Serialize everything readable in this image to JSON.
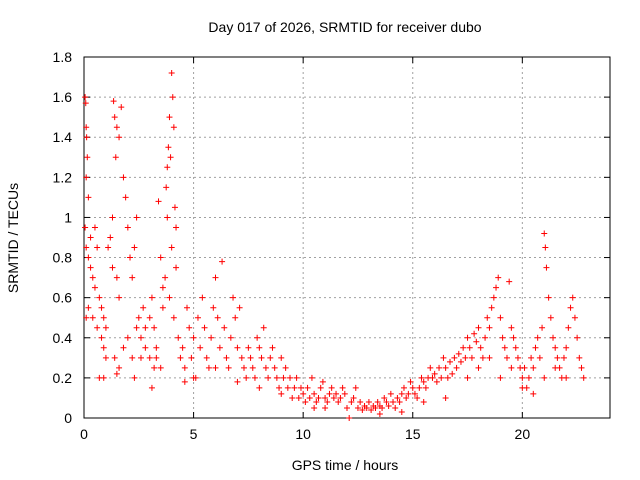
{
  "chart_data": {
    "type": "scatter",
    "title": "Day 017 of 2026, SRMTID for receiver dubo",
    "xlabel": "GPS time / hours",
    "ylabel": "SRMTID / TECUs",
    "xlim": [
      0,
      24
    ],
    "ylim": [
      0,
      1.8
    ],
    "xticks": [
      0,
      5,
      10,
      15,
      20
    ],
    "yticks": [
      0,
      0.2,
      0.4,
      0.6,
      0.8,
      1,
      1.2,
      1.4,
      1.6,
      1.8
    ],
    "ytick_labels": [
      "0",
      "0.2",
      "0.4",
      "0.6",
      "0.8",
      "1",
      "1.2",
      "1.4",
      "1.6",
      "1.8"
    ],
    "grid": true,
    "marker": "+",
    "series_color": "#ff0000",
    "series": [
      {
        "name": "SRMTID",
        "points": [
          [
            0.05,
            1.6
          ],
          [
            0.08,
            1.57
          ],
          [
            0.1,
            1.45
          ],
          [
            0.12,
            1.4
          ],
          [
            0.15,
            1.3
          ],
          [
            0.1,
            1.2
          ],
          [
            0.2,
            1.1
          ],
          [
            0.05,
            0.95
          ],
          [
            0.1,
            0.85
          ],
          [
            0.2,
            0.8
          ],
          [
            0.3,
            0.75
          ],
          [
            0.4,
            0.7
          ],
          [
            0.5,
            0.65
          ],
          [
            0.3,
            0.9
          ],
          [
            0.5,
            0.95
          ],
          [
            0.6,
            0.85
          ],
          [
            0.7,
            0.6
          ],
          [
            0.8,
            0.55
          ],
          [
            0.9,
            0.5
          ],
          [
            1.0,
            0.45
          ],
          [
            0.2,
            0.55
          ],
          [
            0.4,
            0.5
          ],
          [
            0.6,
            0.45
          ],
          [
            0.8,
            0.4
          ],
          [
            0.1,
            0.5
          ],
          [
            0.9,
            0.35
          ],
          [
            1.0,
            0.3
          ],
          [
            1.1,
            0.85
          ],
          [
            1.2,
            0.9
          ],
          [
            1.3,
            0.75
          ],
          [
            1.35,
            1.58
          ],
          [
            1.4,
            1.5
          ],
          [
            1.45,
            1.3
          ],
          [
            1.5,
            1.45
          ],
          [
            1.6,
            1.4
          ],
          [
            1.7,
            1.55
          ],
          [
            1.3,
            1.0
          ],
          [
            1.5,
            0.7
          ],
          [
            1.6,
            0.6
          ],
          [
            1.8,
            1.2
          ],
          [
            1.9,
            1.1
          ],
          [
            2.0,
            0.95
          ],
          [
            2.1,
            0.8
          ],
          [
            2.2,
            0.7
          ],
          [
            2.3,
            0.85
          ],
          [
            2.4,
            1.0
          ],
          [
            2.5,
            0.5
          ],
          [
            2.6,
            0.4
          ],
          [
            2.7,
            0.55
          ],
          [
            2.8,
            0.45
          ],
          [
            1.4,
            0.3
          ],
          [
            1.6,
            0.25
          ],
          [
            1.8,
            0.35
          ],
          [
            2.0,
            0.4
          ],
          [
            2.2,
            0.3
          ],
          [
            2.4,
            0.45
          ],
          [
            2.6,
            0.3
          ],
          [
            2.8,
            0.35
          ],
          [
            0.7,
            0.2
          ],
          [
            1.5,
            0.22
          ],
          [
            3.0,
            0.5
          ],
          [
            3.1,
            0.6
          ],
          [
            3.2,
            0.45
          ],
          [
            3.3,
            0.35
          ],
          [
            3.4,
            1.08
          ],
          [
            3.5,
            0.8
          ],
          [
            3.6,
            0.65
          ],
          [
            3.7,
            0.7
          ],
          [
            3.8,
            1.0
          ],
          [
            3.75,
            1.15
          ],
          [
            3.8,
            1.25
          ],
          [
            3.85,
            1.35
          ],
          [
            3.9,
            1.5
          ],
          [
            3.95,
            1.3
          ],
          [
            4.0,
            1.72
          ],
          [
            4.05,
            1.6
          ],
          [
            4.1,
            1.45
          ],
          [
            4.15,
            1.05
          ],
          [
            4.2,
            0.95
          ],
          [
            4.0,
            0.85
          ],
          [
            3.6,
            0.55
          ],
          [
            3.9,
            0.6
          ],
          [
            4.1,
            0.5
          ],
          [
            4.2,
            0.75
          ],
          [
            3.3,
            0.3
          ],
          [
            3.5,
            0.25
          ],
          [
            3.0,
            0.3
          ],
          [
            3.2,
            0.25
          ],
          [
            4.3,
            0.4
          ],
          [
            4.4,
            0.3
          ],
          [
            4.5,
            0.35
          ],
          [
            4.6,
            0.25
          ],
          [
            4.7,
            0.55
          ],
          [
            4.8,
            0.45
          ],
          [
            4.9,
            0.3
          ],
          [
            5.0,
            0.4
          ],
          [
            5.1,
            0.2
          ],
          [
            5.2,
            0.5
          ],
          [
            5.3,
            0.35
          ],
          [
            5.4,
            0.6
          ],
          [
            5.5,
            0.45
          ],
          [
            5.6,
            0.3
          ],
          [
            5.7,
            0.25
          ],
          [
            5.8,
            0.4
          ],
          [
            5.9,
            0.55
          ],
          [
            6.0,
            0.7
          ],
          [
            6.1,
            0.5
          ],
          [
            6.2,
            0.35
          ],
          [
            6.3,
            0.78
          ],
          [
            6.4,
            0.45
          ],
          [
            6.5,
            0.3
          ],
          [
            6.6,
            0.25
          ],
          [
            6.7,
            0.4
          ],
          [
            6.8,
            0.6
          ],
          [
            6.9,
            0.5
          ],
          [
            7.0,
            0.35
          ],
          [
            7.1,
            0.55
          ],
          [
            7.2,
            0.3
          ],
          [
            7.3,
            0.25
          ],
          [
            7.4,
            0.2
          ],
          [
            7.5,
            0.35
          ],
          [
            7.6,
            0.3
          ],
          [
            7.7,
            0.25
          ],
          [
            7.8,
            0.2
          ],
          [
            7.9,
            0.4
          ],
          [
            8.0,
            0.35
          ],
          [
            8.1,
            0.3
          ],
          [
            8.2,
            0.45
          ],
          [
            8.3,
            0.25
          ],
          [
            8.4,
            0.2
          ],
          [
            8.5,
            0.3
          ],
          [
            8.6,
            0.35
          ],
          [
            8.7,
            0.25
          ],
          [
            8.8,
            0.2
          ],
          [
            8.9,
            0.15
          ],
          [
            9.0,
            0.3
          ],
          [
            9.1,
            0.2
          ],
          [
            9.2,
            0.25
          ],
          [
            9.3,
            0.15
          ],
          [
            9.4,
            0.2
          ],
          [
            9.5,
            0.1
          ],
          [
            9.6,
            0.15
          ],
          [
            9.7,
            0.2
          ],
          [
            9.8,
            0.1
          ],
          [
            9.9,
            0.15
          ],
          [
            10.0,
            0.12
          ],
          [
            10.1,
            0.08
          ],
          [
            10.2,
            0.15
          ],
          [
            10.3,
            0.1
          ],
          [
            10.4,
            0.2
          ],
          [
            10.5,
            0.12
          ],
          [
            10.6,
            0.08
          ],
          [
            10.7,
            0.1
          ],
          [
            10.8,
            0.15
          ],
          [
            10.9,
            0.18
          ],
          [
            11.0,
            0.1
          ],
          [
            11.1,
            0.08
          ],
          [
            11.2,
            0.12
          ],
          [
            11.3,
            0.15
          ],
          [
            11.4,
            0.1
          ],
          [
            11.5,
            0.12
          ],
          [
            11.6,
            0.08
          ],
          [
            11.7,
            0.1
          ],
          [
            11.8,
            0.15
          ],
          [
            11.9,
            0.12
          ],
          [
            12.0,
            0.05
          ],
          [
            12.1,
            0.0
          ],
          [
            12.2,
            0.08
          ],
          [
            12.3,
            0.1
          ],
          [
            12.4,
            0.15
          ],
          [
            12.5,
            0.05
          ],
          [
            12.6,
            0.08
          ],
          [
            12.7,
            0.04
          ],
          [
            12.8,
            0.06
          ],
          [
            12.9,
            0.05
          ],
          [
            13.0,
            0.08
          ],
          [
            13.1,
            0.04
          ],
          [
            13.2,
            0.06
          ],
          [
            13.3,
            0.05
          ],
          [
            13.4,
            0.08
          ],
          [
            13.5,
            0.06
          ],
          [
            13.6,
            0.05
          ],
          [
            13.7,
            0.1
          ],
          [
            13.8,
            0.08
          ],
          [
            13.9,
            0.06
          ],
          [
            14.0,
            0.12
          ],
          [
            14.1,
            0.08
          ],
          [
            14.2,
            0.05
          ],
          [
            14.3,
            0.1
          ],
          [
            14.4,
            0.08
          ],
          [
            14.5,
            0.12
          ],
          [
            14.6,
            0.15
          ],
          [
            14.7,
            0.1
          ],
          [
            14.8,
            0.12
          ],
          [
            14.9,
            0.18
          ],
          [
            15.0,
            0.15
          ],
          [
            15.1,
            0.12
          ],
          [
            15.2,
            0.1
          ],
          [
            15.3,
            0.15
          ],
          [
            15.4,
            0.2
          ],
          [
            15.5,
            0.18
          ],
          [
            15.6,
            0.15
          ],
          [
            15.7,
            0.2
          ],
          [
            15.8,
            0.25
          ],
          [
            15.9,
            0.2
          ],
          [
            16.0,
            0.22
          ],
          [
            16.1,
            0.18
          ],
          [
            16.2,
            0.25
          ],
          [
            16.3,
            0.2
          ],
          [
            16.4,
            0.3
          ],
          [
            16.5,
            0.25
          ],
          [
            16.6,
            0.2
          ],
          [
            16.7,
            0.28
          ],
          [
            16.8,
            0.22
          ],
          [
            16.9,
            0.3
          ],
          [
            17.0,
            0.25
          ],
          [
            17.1,
            0.32
          ],
          [
            17.2,
            0.28
          ],
          [
            17.3,
            0.35
          ],
          [
            17.4,
            0.3
          ],
          [
            17.5,
            0.4
          ],
          [
            17.6,
            0.35
          ],
          [
            17.7,
            0.3
          ],
          [
            17.8,
            0.42
          ],
          [
            17.9,
            0.38
          ],
          [
            18.0,
            0.45
          ],
          [
            18.1,
            0.35
          ],
          [
            18.2,
            0.3
          ],
          [
            18.3,
            0.4
          ],
          [
            18.4,
            0.5
          ],
          [
            18.5,
            0.45
          ],
          [
            18.6,
            0.55
          ],
          [
            18.7,
            0.6
          ],
          [
            18.8,
            0.65
          ],
          [
            18.9,
            0.7
          ],
          [
            19.0,
            0.5
          ],
          [
            19.1,
            0.4
          ],
          [
            19.2,
            0.35
          ],
          [
            19.3,
            0.3
          ],
          [
            19.4,
            0.68
          ],
          [
            19.5,
            0.45
          ],
          [
            19.6,
            0.4
          ],
          [
            19.7,
            0.35
          ],
          [
            19.8,
            0.3
          ],
          [
            19.9,
            0.25
          ],
          [
            20.0,
            0.2
          ],
          [
            20.1,
            0.25
          ],
          [
            20.2,
            0.15
          ],
          [
            20.3,
            0.2
          ],
          [
            20.4,
            0.3
          ],
          [
            20.5,
            0.25
          ],
          [
            20.6,
            0.35
          ],
          [
            20.7,
            0.4
          ],
          [
            20.8,
            0.3
          ],
          [
            20.9,
            0.45
          ],
          [
            21.0,
            0.92
          ],
          [
            21.05,
            0.85
          ],
          [
            21.1,
            0.75
          ],
          [
            21.2,
            0.6
          ],
          [
            21.3,
            0.5
          ],
          [
            21.4,
            0.4
          ],
          [
            21.5,
            0.35
          ],
          [
            21.6,
            0.3
          ],
          [
            21.7,
            0.25
          ],
          [
            21.8,
            0.2
          ],
          [
            21.9,
            0.3
          ],
          [
            22.0,
            0.35
          ],
          [
            22.1,
            0.45
          ],
          [
            22.2,
            0.55
          ],
          [
            22.3,
            0.6
          ],
          [
            22.4,
            0.5
          ],
          [
            22.5,
            0.4
          ],
          [
            22.6,
            0.3
          ],
          [
            22.7,
            0.25
          ],
          [
            22.8,
            0.2
          ],
          [
            17.5,
            0.2
          ],
          [
            18.0,
            0.25
          ],
          [
            18.5,
            0.3
          ],
          [
            19.0,
            0.2
          ],
          [
            19.5,
            0.25
          ],
          [
            20.0,
            0.15
          ],
          [
            20.5,
            0.12
          ],
          [
            21.0,
            0.2
          ],
          [
            21.5,
            0.25
          ],
          [
            22.0,
            0.2
          ],
          [
            5.0,
            0.2
          ],
          [
            6.0,
            0.25
          ],
          [
            7.0,
            0.18
          ],
          [
            8.0,
            0.15
          ],
          [
            9.0,
            0.12
          ],
          [
            10.5,
            0.05
          ],
          [
            11.0,
            0.05
          ],
          [
            13.5,
            0.02
          ],
          [
            14.5,
            0.03
          ],
          [
            15.5,
            0.08
          ],
          [
            16.5,
            0.1
          ],
          [
            2.3,
            0.2
          ],
          [
            3.1,
            0.15
          ],
          [
            4.6,
            0.18
          ],
          [
            0.9,
            0.2
          ]
        ]
      }
    ]
  }
}
